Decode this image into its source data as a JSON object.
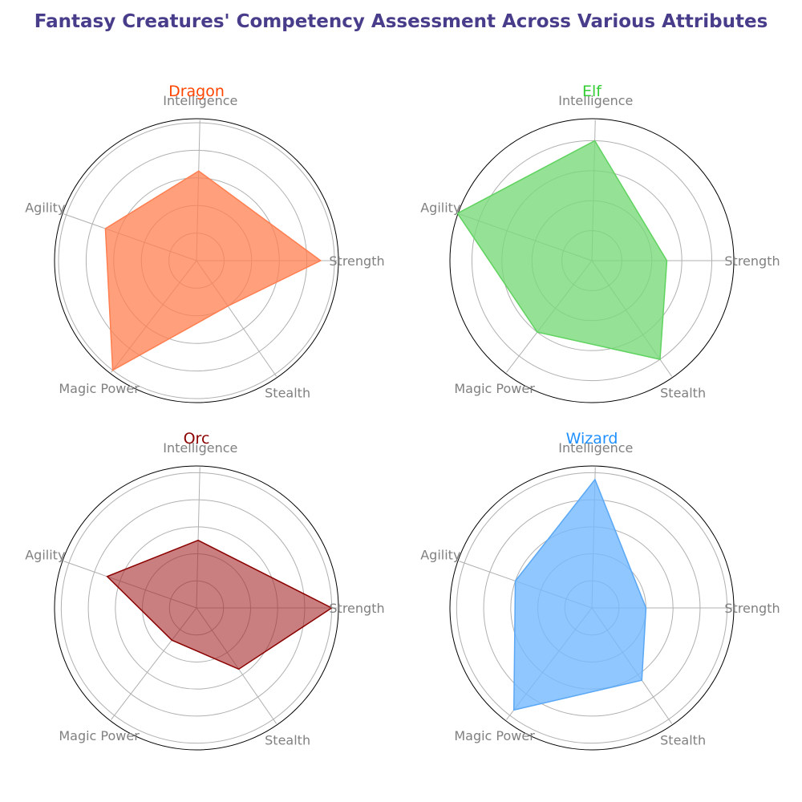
{
  "chart_data": {
    "type": "radar",
    "title": "Fantasy Creatures' Competency Assessment Across Various Attributes",
    "title_color": "#483d8b",
    "attributes": [
      "Strength",
      "Intelligence",
      "Agility",
      "Magic Power",
      "Stealth"
    ],
    "grid": true,
    "panels": [
      {
        "name": "Dragon",
        "color": "#ff4500",
        "fill": "#ff7f50",
        "edge": "#ff7f50",
        "opacity": 0.75,
        "values": [
          90,
          65,
          70,
          100,
          40
        ],
        "rmax": 100,
        "rings": [
          20,
          40,
          60,
          80,
          100
        ]
      },
      {
        "name": "Elf",
        "color": "#32cd32",
        "fill": "#7ad97a",
        "edge": "#5fd35f",
        "opacity": 0.8,
        "values": [
          50,
          80,
          95,
          60,
          80
        ],
        "rmax": 92,
        "rings": [
          20,
          40,
          60,
          80
        ]
      },
      {
        "name": "Orc",
        "color": "#8b0000",
        "fill": "#a52a2a",
        "edge": "#8b0000",
        "opacity": 0.6,
        "values": [
          100,
          50,
          70,
          30,
          55
        ],
        "rmax": 102,
        "rings": [
          20,
          40,
          60,
          80,
          100
        ]
      },
      {
        "name": "Wizard",
        "color": "#1e90ff",
        "fill": "#74b9ff",
        "edge": "#5aa8f5",
        "opacity": 0.8,
        "values": [
          40,
          95,
          60,
          95,
          65
        ],
        "rmax": 102,
        "rings": [
          20,
          40,
          60,
          80,
          100
        ]
      }
    ]
  }
}
